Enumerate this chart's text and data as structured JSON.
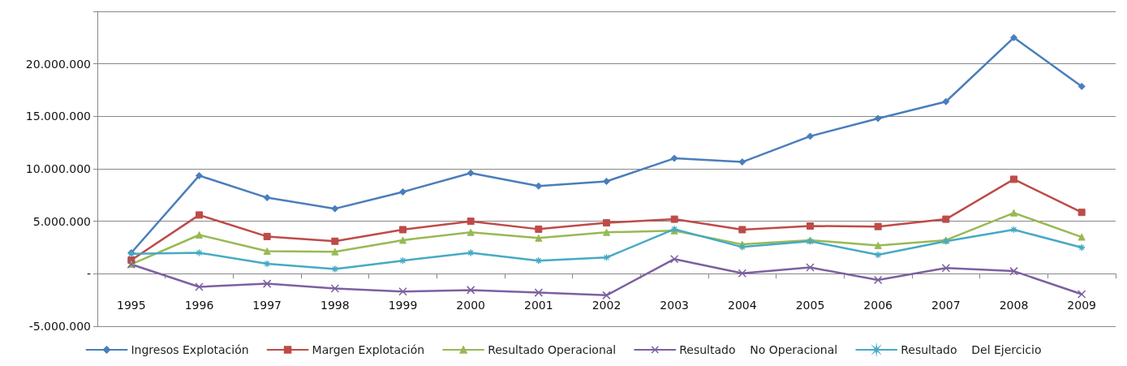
{
  "chart_data": {
    "type": "line",
    "categories": [
      "1995",
      "1996",
      "1997",
      "1998",
      "1999",
      "2000",
      "2001",
      "2002",
      "2003",
      "2004",
      "2005",
      "2006",
      "2007",
      "2008",
      "2009"
    ],
    "series": [
      {
        "name": "Ingresos Explotación",
        "color": "#4a7ebb",
        "marker": "diamond",
        "values": [
          2000000,
          9350000,
          7250000,
          6200000,
          7800000,
          9600000,
          8350000,
          8800000,
          11000000,
          10650000,
          13100000,
          14800000,
          16400000,
          22500000,
          17850000
        ]
      },
      {
        "name": "Margen Explotación",
        "color": "#be4b48",
        "marker": "square",
        "values": [
          1300000,
          5600000,
          3550000,
          3100000,
          4200000,
          5000000,
          4250000,
          4850000,
          5200000,
          4200000,
          4550000,
          4500000,
          5200000,
          9000000,
          5850000
        ]
      },
      {
        "name": "Resultado Operacional",
        "color": "#98b954",
        "marker": "triangle",
        "values": [
          900000,
          3700000,
          2150000,
          2100000,
          3200000,
          3950000,
          3400000,
          3950000,
          4100000,
          2800000,
          3200000,
          2700000,
          3200000,
          5800000,
          3500000
        ]
      },
      {
        "name": "Resultado    No Operacional",
        "color": "#7d60a0",
        "marker": "cross",
        "values": [
          900000,
          -1250000,
          -950000,
          -1400000,
          -1700000,
          -1550000,
          -1800000,
          -2050000,
          1400000,
          50000,
          600000,
          -600000,
          550000,
          250000,
          -1950000
        ]
      },
      {
        "name": "Resultado    Del Ejercicio",
        "color": "#46aac5",
        "marker": "star",
        "values": [
          1900000,
          2000000,
          950000,
          450000,
          1250000,
          2000000,
          1250000,
          1550000,
          4250000,
          2550000,
          3100000,
          1800000,
          3100000,
          4200000,
          2500000
        ]
      }
    ],
    "ylim": [
      -5000000,
      25000000
    ],
    "yticks": [
      {
        "value": -5000000,
        "label": "-5.000.000"
      },
      {
        "value": 0,
        "label": "-"
      },
      {
        "value": 5000000,
        "label": "5.000.000"
      },
      {
        "value": 10000000,
        "label": "10.000.000"
      },
      {
        "value": 15000000,
        "label": "15.000.000"
      },
      {
        "value": 20000000,
        "label": "20.000.000"
      },
      {
        "value": 25000000,
        "label": null
      }
    ],
    "grid": "y",
    "legend": "bottom",
    "line_style": "solid"
  }
}
